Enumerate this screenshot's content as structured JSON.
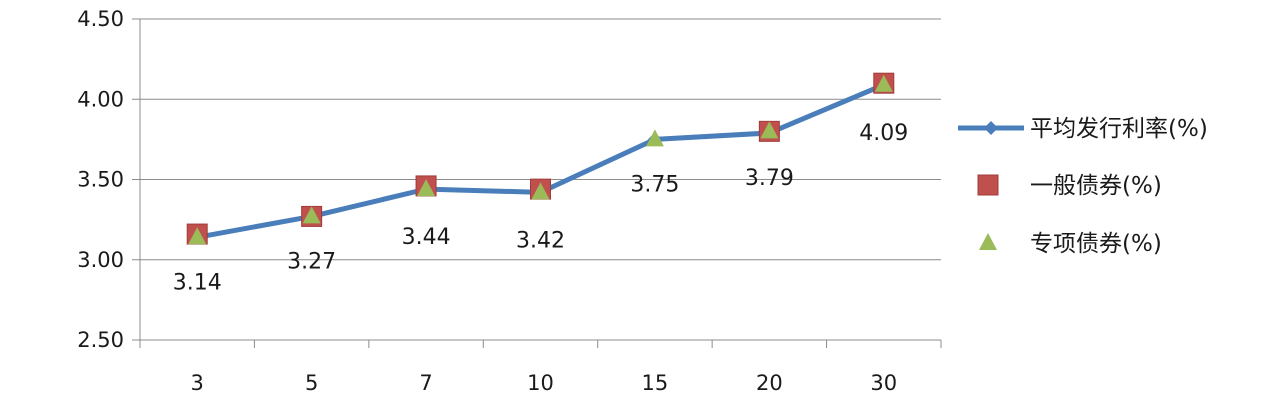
{
  "chart_data": {
    "type": "line",
    "title": "",
    "xlabel": "",
    "ylabel": "",
    "categories": [
      "3",
      "5",
      "7",
      "10",
      "15",
      "20",
      "30"
    ],
    "ylim": [
      2.5,
      4.5
    ],
    "yticks": [
      "2.50",
      "3.00",
      "3.50",
      "4.00",
      "4.50"
    ],
    "grid": true,
    "legend_position": "right",
    "series": [
      {
        "name": "平均发行利率(%)",
        "marker": "diamond",
        "color": "#4a7ebb",
        "show_line": true,
        "values": [
          3.14,
          3.27,
          3.44,
          3.42,
          3.75,
          3.79,
          4.09
        ],
        "labels": [
          "3.14",
          "3.27",
          "3.44",
          "3.42",
          "3.75",
          "3.79",
          "4.09"
        ]
      },
      {
        "name": "一般债券(%)",
        "marker": "square",
        "color": "#c0504d",
        "show_line": false,
        "values": [
          3.16,
          3.27,
          3.46,
          3.44,
          null,
          3.8,
          4.1
        ]
      },
      {
        "name": "专项债券(%)",
        "marker": "triangle",
        "color": "#9bbb59",
        "show_line": false,
        "values": [
          3.14,
          3.27,
          3.44,
          3.42,
          3.75,
          3.8,
          4.09
        ]
      }
    ]
  }
}
